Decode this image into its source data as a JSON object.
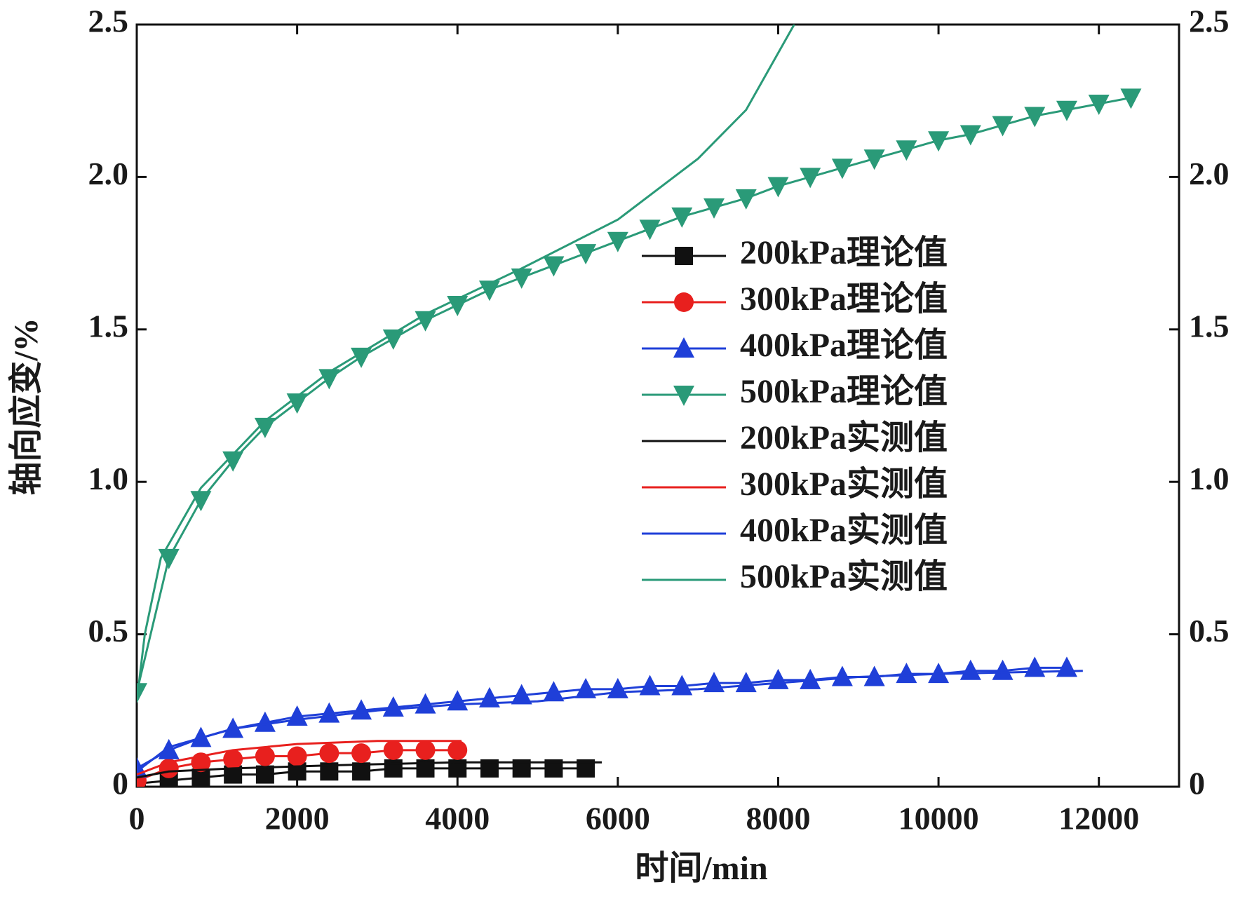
{
  "chart_data": {
    "type": "line",
    "x_label": "时间/min",
    "y_label": "轴向应变/%",
    "xlim": [
      0,
      13000
    ],
    "xticks": [
      0,
      2000,
      4000,
      6000,
      8000,
      10000,
      12000
    ],
    "ylim": [
      0,
      2.5
    ],
    "yticks": [
      0,
      0.5,
      {
        "value": 1.0,
        "label": "1.0"
      },
      1.5,
      {
        "value": 2.0,
        "label": "2.0"
      },
      2.5
    ],
    "y2lim": [
      0,
      2.5
    ],
    "y2ticks": [
      0,
      0.5,
      {
        "value": 1.0,
        "label": "1.0"
      },
      1.5,
      {
        "value": 2.0,
        "label": "2.0"
      },
      2.5
    ],
    "legend_position": "center",
    "series": [
      {
        "name": "200kPa理论值",
        "color": "#111111",
        "marker": "square",
        "x": [
          0,
          400,
          800,
          1200,
          1600,
          2000,
          2400,
          2800,
          3200,
          3600,
          4000,
          4400,
          4800,
          5200,
          5600
        ],
        "values": [
          0.01,
          0.02,
          0.03,
          0.04,
          0.04,
          0.05,
          0.05,
          0.05,
          0.06,
          0.06,
          0.06,
          0.06,
          0.06,
          0.06,
          0.06
        ]
      },
      {
        "name": "300kPa理论值",
        "color": "#e8201e",
        "marker": "circle",
        "x": [
          0,
          400,
          800,
          1200,
          1600,
          2000,
          2400,
          2800,
          3200,
          3600,
          4000
        ],
        "values": [
          0.02,
          0.06,
          0.08,
          0.09,
          0.1,
          0.1,
          0.11,
          0.11,
          0.12,
          0.12,
          0.12
        ]
      },
      {
        "name": "400kPa理论值",
        "color": "#1f3fd8",
        "marker": "triangle-up",
        "x": [
          0,
          400,
          800,
          1200,
          1600,
          2000,
          2400,
          2800,
          3200,
          3600,
          4000,
          4400,
          4800,
          5200,
          5600,
          6000,
          6400,
          6800,
          7200,
          7600,
          8000,
          8400,
          8800,
          9200,
          9600,
          10000,
          10400,
          10800,
          11200,
          11600
        ],
        "values": [
          0.06,
          0.12,
          0.16,
          0.19,
          0.21,
          0.23,
          0.24,
          0.25,
          0.26,
          0.27,
          0.28,
          0.29,
          0.3,
          0.31,
          0.32,
          0.32,
          0.33,
          0.33,
          0.34,
          0.34,
          0.35,
          0.35,
          0.36,
          0.36,
          0.37,
          0.37,
          0.38,
          0.38,
          0.39,
          0.39
        ]
      },
      {
        "name": "500kPa理论值",
        "color": "#2a9a78",
        "marker": "triangle-down",
        "x": [
          0,
          400,
          800,
          1200,
          1600,
          2000,
          2400,
          2800,
          3200,
          3600,
          4000,
          4400,
          4800,
          5200,
          5600,
          6000,
          6400,
          6800,
          7200,
          7600,
          8000,
          8400,
          8800,
          9200,
          9600,
          10000,
          10400,
          10800,
          11200,
          11600,
          12000,
          12400
        ],
        "values": [
          0.31,
          0.75,
          0.94,
          1.07,
          1.18,
          1.26,
          1.34,
          1.41,
          1.47,
          1.53,
          1.58,
          1.63,
          1.67,
          1.71,
          1.75,
          1.79,
          1.83,
          1.87,
          1.9,
          1.93,
          1.97,
          2.0,
          2.03,
          2.06,
          2.09,
          2.12,
          2.14,
          2.17,
          2.2,
          2.22,
          2.24,
          2.26
        ]
      },
      {
        "name": "200kPa实测值",
        "color": "#111111",
        "x": [
          0,
          400,
          1200,
          2400,
          4000,
          5800
        ],
        "values": [
          0.03,
          0.05,
          0.06,
          0.07,
          0.08,
          0.08
        ]
      },
      {
        "name": "300kPa实测值",
        "color": "#e8201e",
        "x": [
          0,
          400,
          1200,
          2000,
          3000,
          4050
        ],
        "values": [
          0.04,
          0.08,
          0.12,
          0.14,
          0.15,
          0.15
        ]
      },
      {
        "name": "400kPa实测值",
        "color": "#1f3fd8",
        "x": [
          0,
          400,
          1200,
          2000,
          3000,
          4000,
          5000,
          6000,
          7000,
          8000,
          9000,
          10000,
          11800
        ],
        "values": [
          0.05,
          0.13,
          0.19,
          0.22,
          0.25,
          0.27,
          0.28,
          0.31,
          0.32,
          0.34,
          0.36,
          0.37,
          0.38
        ]
      },
      {
        "name": "500kPa实测值",
        "color": "#2a9a78",
        "x": [
          0,
          100,
          300,
          800,
          1600,
          2400,
          3600,
          4800,
          6000,
          7000,
          7600,
          8200
        ],
        "values": [
          0.28,
          0.5,
          0.75,
          0.98,
          1.2,
          1.36,
          1.55,
          1.7,
          1.86,
          2.06,
          2.22,
          2.5
        ]
      }
    ]
  }
}
